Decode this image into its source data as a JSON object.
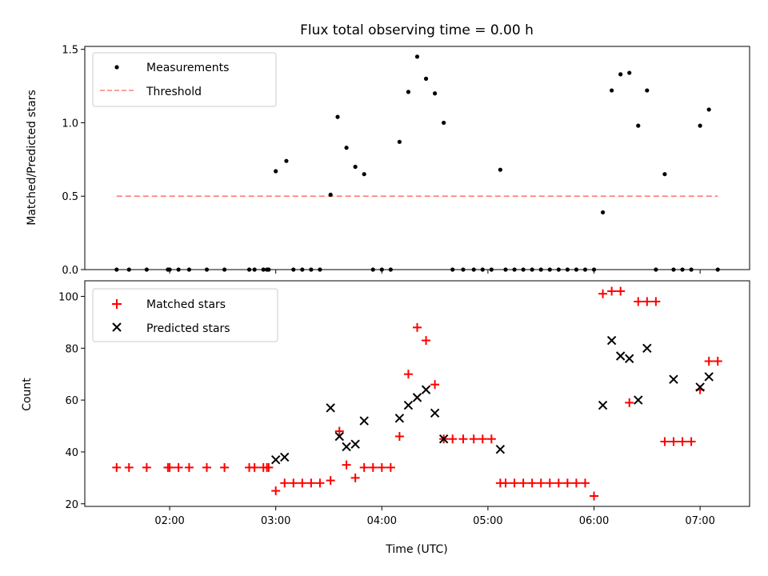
{
  "chart_data": [
    {
      "type": "scatter",
      "title": "Flux total observing time = 0.00 h",
      "xlabel": "",
      "ylabel": "Matched/Predicted stars",
      "xlim": [
        "01:12",
        "07:28"
      ],
      "ylim": [
        0,
        1.52
      ],
      "yticks": [
        "0.0",
        "0.5",
        "1.0",
        "1.5"
      ],
      "legend": "top-left",
      "threshold": {
        "name": "Threshold",
        "value": 0.5,
        "x_start": "01:30",
        "x_end": "07:10",
        "color": "#ff7f7f",
        "style": "dashed"
      },
      "series": [
        {
          "name": "Measurements",
          "color": "#000000",
          "marker": "dot",
          "x": [
            "01:30",
            "01:37",
            "01:47",
            "01:59",
            "02:00",
            "02:05",
            "02:11",
            "02:21",
            "02:31",
            "02:45",
            "02:48",
            "02:53",
            "02:55",
            "02:56",
            "03:00",
            "03:06",
            "03:10",
            "03:15",
            "03:20",
            "03:25",
            "03:31",
            "03:35",
            "03:40",
            "03:45",
            "03:50",
            "03:55",
            "04:00",
            "04:05",
            "04:10",
            "04:15",
            "04:20",
            "04:25",
            "04:30",
            "04:35",
            "04:40",
            "04:46",
            "04:52",
            "04:57",
            "05:02",
            "05:07",
            "05:10",
            "05:15",
            "05:20",
            "05:25",
            "05:30",
            "05:35",
            "05:40",
            "05:45",
            "05:50",
            "05:55",
            "06:00",
            "06:05",
            "06:10",
            "06:15",
            "06:20",
            "06:25",
            "06:30",
            "06:35",
            "06:40",
            "06:45",
            "06:50",
            "06:55",
            "07:00",
            "07:05",
            "07:10"
          ],
          "y": [
            0,
            0,
            0,
            0,
            0,
            0,
            0,
            0,
            0,
            0,
            0,
            0,
            0,
            0,
            0.67,
            0.74,
            0,
            0,
            0,
            0,
            0.51,
            1.04,
            0.83,
            0.7,
            0.65,
            0,
            0,
            0,
            0.87,
            1.21,
            1.45,
            1.3,
            1.2,
            1.0,
            0,
            0,
            0,
            0,
            0,
            0.68,
            0,
            0,
            0,
            0,
            0,
            0,
            0,
            0,
            0,
            0,
            0,
            0.39,
            1.22,
            1.33,
            1.34,
            0.98,
            1.22,
            0,
            0.65,
            0,
            0,
            0,
            0.98,
            1.09,
            0
          ]
        }
      ]
    },
    {
      "type": "scatter",
      "title": "",
      "xlabel": "Time (UTC)",
      "ylabel": "Count",
      "xlim": [
        "01:12",
        "07:28"
      ],
      "ylim": [
        19,
        106
      ],
      "yticks": [
        "20",
        "40",
        "60",
        "80",
        "100"
      ],
      "xticks": [
        "02:00",
        "03:00",
        "04:00",
        "05:00",
        "06:00",
        "07:00"
      ],
      "legend": "top-left",
      "series": [
        {
          "name": "Matched stars",
          "color": "#ff0000",
          "marker": "plus",
          "x": [
            "01:30",
            "01:37",
            "01:47",
            "01:59",
            "02:00",
            "02:05",
            "02:11",
            "02:21",
            "02:31",
            "02:45",
            "02:48",
            "02:53",
            "02:55",
            "02:56",
            "03:00",
            "03:05",
            "03:10",
            "03:15",
            "03:20",
            "03:25",
            "03:31",
            "03:36",
            "03:40",
            "03:45",
            "03:50",
            "03:55",
            "04:00",
            "04:05",
            "04:10",
            "04:15",
            "04:20",
            "04:25",
            "04:30",
            "04:35",
            "04:40",
            "04:46",
            "04:52",
            "04:57",
            "05:02",
            "05:07",
            "05:10",
            "05:15",
            "05:20",
            "05:25",
            "05:30",
            "05:35",
            "05:40",
            "05:45",
            "05:50",
            "05:55",
            "06:00",
            "06:05",
            "06:10",
            "06:15",
            "06:20",
            "06:25",
            "06:30",
            "06:35",
            "06:40",
            "06:45",
            "06:50",
            "06:55",
            "07:00",
            "07:05",
            "07:10"
          ],
          "y": [
            34,
            34,
            34,
            34,
            34,
            34,
            34,
            34,
            34,
            34,
            34,
            34,
            34,
            34,
            25,
            28,
            28,
            28,
            28,
            28,
            29,
            48,
            35,
            30,
            34,
            34,
            34,
            34,
            46,
            70,
            88,
            83,
            66,
            45,
            45,
            45,
            45,
            45,
            45,
            28,
            28,
            28,
            28,
            28,
            28,
            28,
            28,
            28,
            28,
            28,
            23,
            101,
            102,
            102,
            59,
            98,
            98,
            98,
            44,
            44,
            44,
            44,
            64,
            75,
            75
          ]
        },
        {
          "name": "Predicted stars",
          "color": "#000000",
          "marker": "x",
          "x": [
            "03:00",
            "03:05",
            "03:31",
            "03:36",
            "03:40",
            "03:45",
            "03:50",
            "04:10",
            "04:15",
            "04:20",
            "04:25",
            "04:30",
            "04:35",
            "05:07",
            "06:05",
            "06:10",
            "06:15",
            "06:20",
            "06:25",
            "06:30",
            "06:45",
            "07:00",
            "07:05"
          ],
          "y": [
            37,
            38,
            57,
            46,
            42,
            43,
            52,
            53,
            58,
            61,
            64,
            55,
            45,
            41,
            58,
            83,
            77,
            76,
            60,
            80,
            68,
            65,
            69
          ]
        }
      ]
    }
  ]
}
